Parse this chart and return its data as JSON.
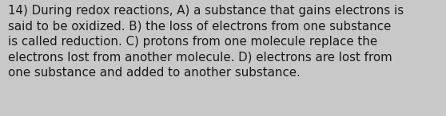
{
  "lines": [
    "14) During redox reactions, A) a substance that gains electrons is",
    "said to be oxidized. B) the loss of electrons from one substance",
    "is called reduction. C) protons from one molecule replace the",
    "electrons lost from another molecule. D) electrons are lost from",
    "one substance and added to another substance."
  ],
  "background_color": "#c8c8c8",
  "text_color": "#1a1a1a",
  "font_size": 10.8,
  "fig_width": 5.58,
  "fig_height": 1.46
}
